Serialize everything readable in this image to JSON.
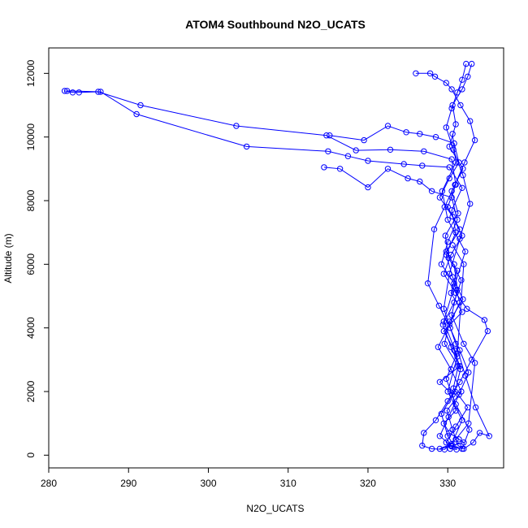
{
  "chart_data": {
    "type": "line",
    "title": "ATOM4 Southbound N2O_UCATS",
    "xlabel": "N2O_UCATS",
    "ylabel": "Altitude (m)",
    "xlim": [
      280,
      337
    ],
    "ylim": [
      -400,
      12800
    ],
    "xticks": [
      280,
      290,
      300,
      310,
      320,
      330
    ],
    "yticks": [
      0,
      2000,
      4000,
      6000,
      8000,
      10000,
      12000
    ],
    "grid": false,
    "markers": "open-circle",
    "colors": {
      "series": "#0000ff"
    },
    "series": [
      {
        "x": [
          282.0,
          283.0,
          283.8,
          286.2,
          291.5,
          303.5,
          314.8,
          318.5,
          322.8,
          327.0,
          330.5,
          331.0,
          330.0,
          331.5,
          329.8,
          331.2,
          330.4,
          331.8,
          329.5,
          330.8,
          331.5,
          329.0,
          330.6,
          331.0,
          329.5,
          330.2,
          331.4,
          332.0,
          330.5,
          329.0,
          330.5,
          331.8,
          330.0,
          331.2,
          329.5,
          330.8,
          332.2,
          330.0,
          329.3,
          331.0,
          330.6
        ],
        "y": [
          11450,
          11400,
          11400,
          11420,
          11000,
          10350,
          10050,
          9580,
          9600,
          9550,
          9300,
          8500,
          7800,
          7100,
          6400,
          5800,
          5100,
          4500,
          3900,
          3300,
          2800,
          2300,
          1900,
          1400,
          1000,
          700,
          500,
          400,
          300,
          200,
          350,
          1100,
          2000,
          3100,
          4200,
          5300,
          6400,
          7400,
          8300,
          9200,
          10100
        ]
      },
      {
        "x": [
          282.3,
          286.5,
          291.0,
          304.8,
          315.0,
          317.5,
          320.0,
          324.5,
          326.8,
          330.2,
          331.8,
          330.5,
          331.0,
          329.8,
          330.6,
          331.9,
          330.2,
          329.6,
          331.3,
          330.7,
          332.5,
          331.0,
          329.8,
          330.3,
          331.1,
          330.0,
          329.2,
          330.9,
          331.6,
          330.4,
          329.4,
          330.8,
          331.7,
          330.1,
          329.7,
          331.3,
          330.5,
          331.9,
          330.2,
          331.0,
          330.6,
          331.8,
          332.5,
          333.0
        ],
        "y": [
          11450,
          11420,
          10720,
          9700,
          9550,
          9400,
          9250,
          9150,
          9100,
          9050,
          8400,
          7700,
          7000,
          6300,
          5600,
          4900,
          4200,
          3500,
          2800,
          2100,
          1500,
          900,
          400,
          200,
          180,
          600,
          1300,
          2000,
          2700,
          3400,
          4100,
          4800,
          5500,
          6200,
          6900,
          7600,
          8300,
          9000,
          9700,
          10400,
          11000,
          11500,
          11900,
          12300
        ]
      },
      {
        "x": [
          314.5,
          316.5,
          320.0,
          322.5,
          325.0,
          326.5,
          328.0,
          330.5,
          331.2,
          330.0,
          329.2,
          330.8,
          331.5,
          330.2,
          328.8,
          330.4,
          331.7,
          329.9,
          330.6,
          331.3,
          332.0,
          333.2,
          334.0,
          335.2,
          333.5,
          332.2,
          331.0,
          329.5,
          330.2,
          331.5,
          332.8,
          331.9,
          330.7,
          329.8,
          330.5,
          331.2,
          331.8,
          332.3
        ],
        "y": [
          9050,
          9000,
          8420,
          9000,
          8700,
          8600,
          8300,
          8100,
          7400,
          6700,
          6000,
          5400,
          4800,
          4100,
          3400,
          2700,
          2000,
          1400,
          800,
          300,
          200,
          400,
          700,
          600,
          1500,
          2500,
          3500,
          4600,
          5700,
          6800,
          7900,
          8800,
          9600,
          10300,
          10900,
          11400,
          11800,
          12300
        ]
      },
      {
        "x": [
          315.2,
          319.5,
          322.5,
          324.8,
          326.5,
          328.5,
          330.8,
          331.4,
          330.2,
          329.0,
          330.6,
          331.8,
          330.4,
          329.5,
          331.0,
          332.4,
          334.6,
          335.0,
          333.0,
          331.5,
          330.0,
          328.5,
          327.0,
          326.8,
          328.0,
          329.6,
          331.0,
          332.6,
          333.4,
          332.0,
          330.5,
          331.2,
          330.8
        ],
        "y": [
          10050,
          9900,
          10350,
          10150,
          10100,
          10000,
          9800,
          9200,
          8700,
          8100,
          7500,
          6900,
          6300,
          5700,
          5100,
          4600,
          4250,
          3900,
          3000,
          2300,
          1700,
          1100,
          700,
          300,
          200,
          180,
          500,
          1000,
          2900,
          3500,
          4400,
          5200,
          6000
        ]
      },
      {
        "x": [
          326.0,
          327.8,
          328.4,
          329.8,
          330.5,
          331.6,
          332.8,
          333.4,
          332.1,
          330.9,
          329.6,
          328.3,
          327.5,
          328.9,
          330.3,
          331.5,
          332.6,
          331.4,
          330.1,
          329.0,
          330.4,
          331.8,
          332.7,
          331.0,
          329.8,
          331.2,
          332.0,
          330.6
        ],
        "y": [
          12000,
          12000,
          11900,
          11700,
          11500,
          11000,
          10500,
          9900,
          9200,
          8500,
          7800,
          7100,
          5400,
          4700,
          4000,
          3300,
          2600,
          1900,
          1200,
          600,
          300,
          200,
          800,
          1600,
          2400,
          3200,
          6000,
          6600
        ]
      }
    ]
  }
}
